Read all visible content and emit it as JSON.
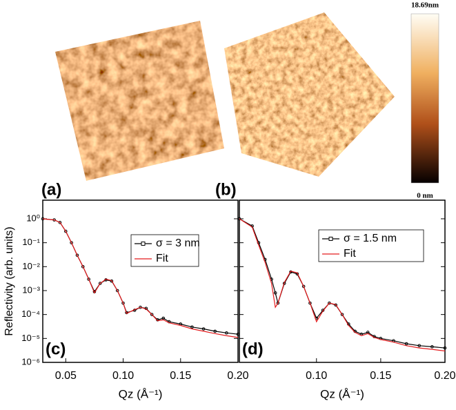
{
  "panels": [
    "(a)",
    "(b)"
  ],
  "colorbar": {
    "max_label": "18.69nm",
    "min_label": "0 nm"
  },
  "chart_data": [
    {
      "type": "line",
      "annotation": "(c)",
      "ylabel": "Reflectivity (arb. units)",
      "xlabel": "Qz (Å⁻¹)",
      "log_y": true,
      "xlim": [
        0.03,
        0.2
      ],
      "ylim": [
        1e-06,
        6
      ],
      "xticks": [
        {
          "value": 0.05,
          "label": "0.05"
        },
        {
          "value": 0.1,
          "label": "0.10"
        },
        {
          "value": 0.15,
          "label": "0.15"
        },
        {
          "value": 0.2,
          "label": "0.20"
        }
      ],
      "yticks": [
        {
          "value": 1,
          "label": "10⁰"
        },
        {
          "value": 0.1,
          "label": "10⁻¹"
        },
        {
          "value": 0.01,
          "label": "10⁻²"
        },
        {
          "value": 0.001,
          "label": "10⁻³"
        },
        {
          "value": 0.0001,
          "label": "10⁻⁴"
        },
        {
          "value": 1e-05,
          "label": "10⁻⁵"
        },
        {
          "value": 1e-06,
          "label": "10⁻⁶"
        }
      ],
      "x": [
        0.03,
        0.04,
        0.045,
        0.05,
        0.055,
        0.06,
        0.065,
        0.07,
        0.075,
        0.08,
        0.085,
        0.09,
        0.095,
        0.1,
        0.103,
        0.11,
        0.115,
        0.12,
        0.125,
        0.13,
        0.135,
        0.14,
        0.15,
        0.16,
        0.17,
        0.18,
        0.19,
        0.2
      ],
      "series": [
        {
          "name": "σ = 3 nm",
          "color": "#000000",
          "markers": true,
          "values": [
            1,
            0.9,
            0.7,
            0.3,
            0.1,
            0.03,
            0.01,
            0.003,
            0.0009,
            0.002,
            0.0028,
            0.0025,
            0.001,
            0.0003,
            0.00012,
            0.00015,
            0.0002,
            0.00018,
            0.0001,
            6e-05,
            7e-05,
            5e-05,
            4e-05,
            3e-05,
            2.5e-05,
            2e-05,
            1.7e-05,
            1.5e-05
          ]
        },
        {
          "name": "Fit",
          "color": "#e41a1c",
          "markers": false,
          "values": [
            1,
            0.9,
            0.7,
            0.3,
            0.1,
            0.03,
            0.01,
            0.003,
            0.0008,
            0.002,
            0.003,
            0.0026,
            0.001,
            0.0003,
            0.00011,
            0.00016,
            0.0002,
            0.00017,
            0.0001,
            5.5e-05,
            6e-05,
            4.5e-05,
            3.5e-05,
            2.5e-05,
            2e-05,
            1.6e-05,
            1.3e-05,
            1.1e-05
          ]
        }
      ]
    },
    {
      "type": "line",
      "annotation": "(d)",
      "xlabel": "Qz (Å⁻¹)",
      "log_y": true,
      "xlim": [
        0.04,
        0.2
      ],
      "ylim": [
        1e-06,
        6
      ],
      "xticks": [
        {
          "value": 0.1,
          "label": "0.10"
        },
        {
          "value": 0.15,
          "label": "0.15"
        },
        {
          "value": 0.2,
          "label": "0.20"
        }
      ],
      "x": [
        0.04,
        0.05,
        0.055,
        0.06,
        0.065,
        0.068,
        0.07,
        0.075,
        0.08,
        0.085,
        0.09,
        0.095,
        0.1,
        0.105,
        0.11,
        0.115,
        0.12,
        0.125,
        0.13,
        0.135,
        0.14,
        0.145,
        0.15,
        0.16,
        0.17,
        0.18,
        0.19,
        0.2
      ],
      "series": [
        {
          "name": "σ = 1.5 nm",
          "color": "#000000",
          "markers": true,
          "values": [
            1,
            0.5,
            0.1,
            0.02,
            0.003,
            0.0008,
            0.0003,
            0.002,
            0.006,
            0.005,
            0.0015,
            0.0003,
            7e-05,
            0.00015,
            0.0003,
            0.00025,
            0.0001,
            4e-05,
            2e-05,
            1.5e-05,
            1.8e-05,
            1.2e-05,
            1e-05,
            8e-06,
            6e-06,
            5e-06,
            4.5e-06,
            4e-06
          ]
        },
        {
          "name": "Fit",
          "color": "#e41a1c",
          "markers": false,
          "values": [
            1,
            0.45,
            0.08,
            0.015,
            0.002,
            0.0002,
            0.0003,
            0.0022,
            0.0065,
            0.0055,
            0.0015,
            0.0003,
            5e-05,
            0.00014,
            0.0003,
            0.00026,
            0.0001,
            3.5e-05,
            1.8e-05,
            1.3e-05,
            1.6e-05,
            1.1e-05,
            9e-06,
            7e-06,
            5e-06,
            4e-06,
            3.5e-06,
            3e-06
          ]
        }
      ]
    }
  ]
}
